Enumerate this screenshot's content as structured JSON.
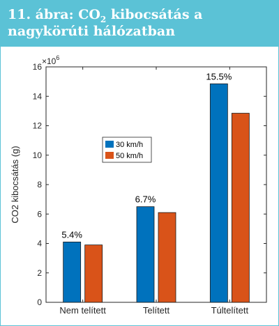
{
  "figure": {
    "title_prefix": "11. ábra: CO",
    "title_subscript": "2",
    "title_suffix": " kibocsátás a nagykörúti hálózatban",
    "header_color": "#5bc2d6"
  },
  "chart_data": {
    "type": "bar",
    "categories": [
      "Nem telített",
      "Telített",
      "Túltelített"
    ],
    "series": [
      {
        "name": "30 km/h",
        "color": "#0072bd",
        "values": [
          4.1,
          6.5,
          14.85
        ]
      },
      {
        "name": "50 km/h",
        "color": "#d95319",
        "values": [
          3.9,
          6.1,
          12.85
        ]
      }
    ],
    "bar_labels": [
      "5.4%",
      "6.7%",
      "15.5%"
    ],
    "ylabel": "CO2 kibocsátás (g)",
    "y_multiplier": "×10",
    "y_multiplier_exponent": "6",
    "ylim": [
      0,
      16
    ],
    "yticks": [
      "0",
      "2",
      "4",
      "6",
      "8",
      "10",
      "12",
      "14",
      "16"
    ],
    "legend_position": "upper-middle",
    "grid": false
  }
}
